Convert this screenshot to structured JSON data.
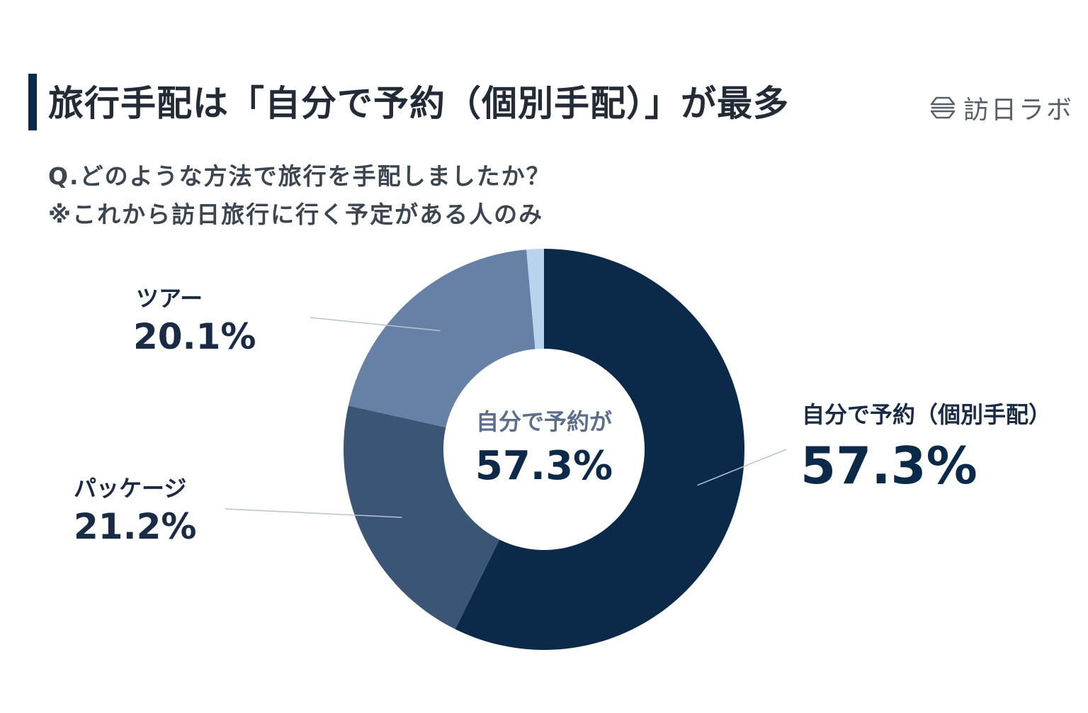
{
  "title": "旅行手配は「自分で予約（個別手配）」が最多",
  "logo_text": "訪日ラボ",
  "question": "Q.どのような方法で旅行を手配しましたか？",
  "note": "※これから訪日旅行に行く予定がある人のみ",
  "colors": {
    "accent_bar": "#0b2a4a",
    "text_dark": "#1a2b45"
  },
  "chart_data": {
    "type": "pie",
    "style": "donut",
    "center_label": "自分で予約が",
    "center_value": "57.3%",
    "slices": [
      {
        "name": "自分で予約（個別手配）",
        "value": 57.3,
        "label": "57.3%",
        "color": "#0b2a4a"
      },
      {
        "name": "パッケージ",
        "value": 21.2,
        "label": "21.2%",
        "color": "#3b5576"
      },
      {
        "name": "ツアー",
        "value": 20.1,
        "label": "20.1%",
        "color": "#6780a5"
      },
      {
        "name": "",
        "value": 1.4,
        "label": "",
        "color": "#b8d3ec"
      }
    ]
  }
}
